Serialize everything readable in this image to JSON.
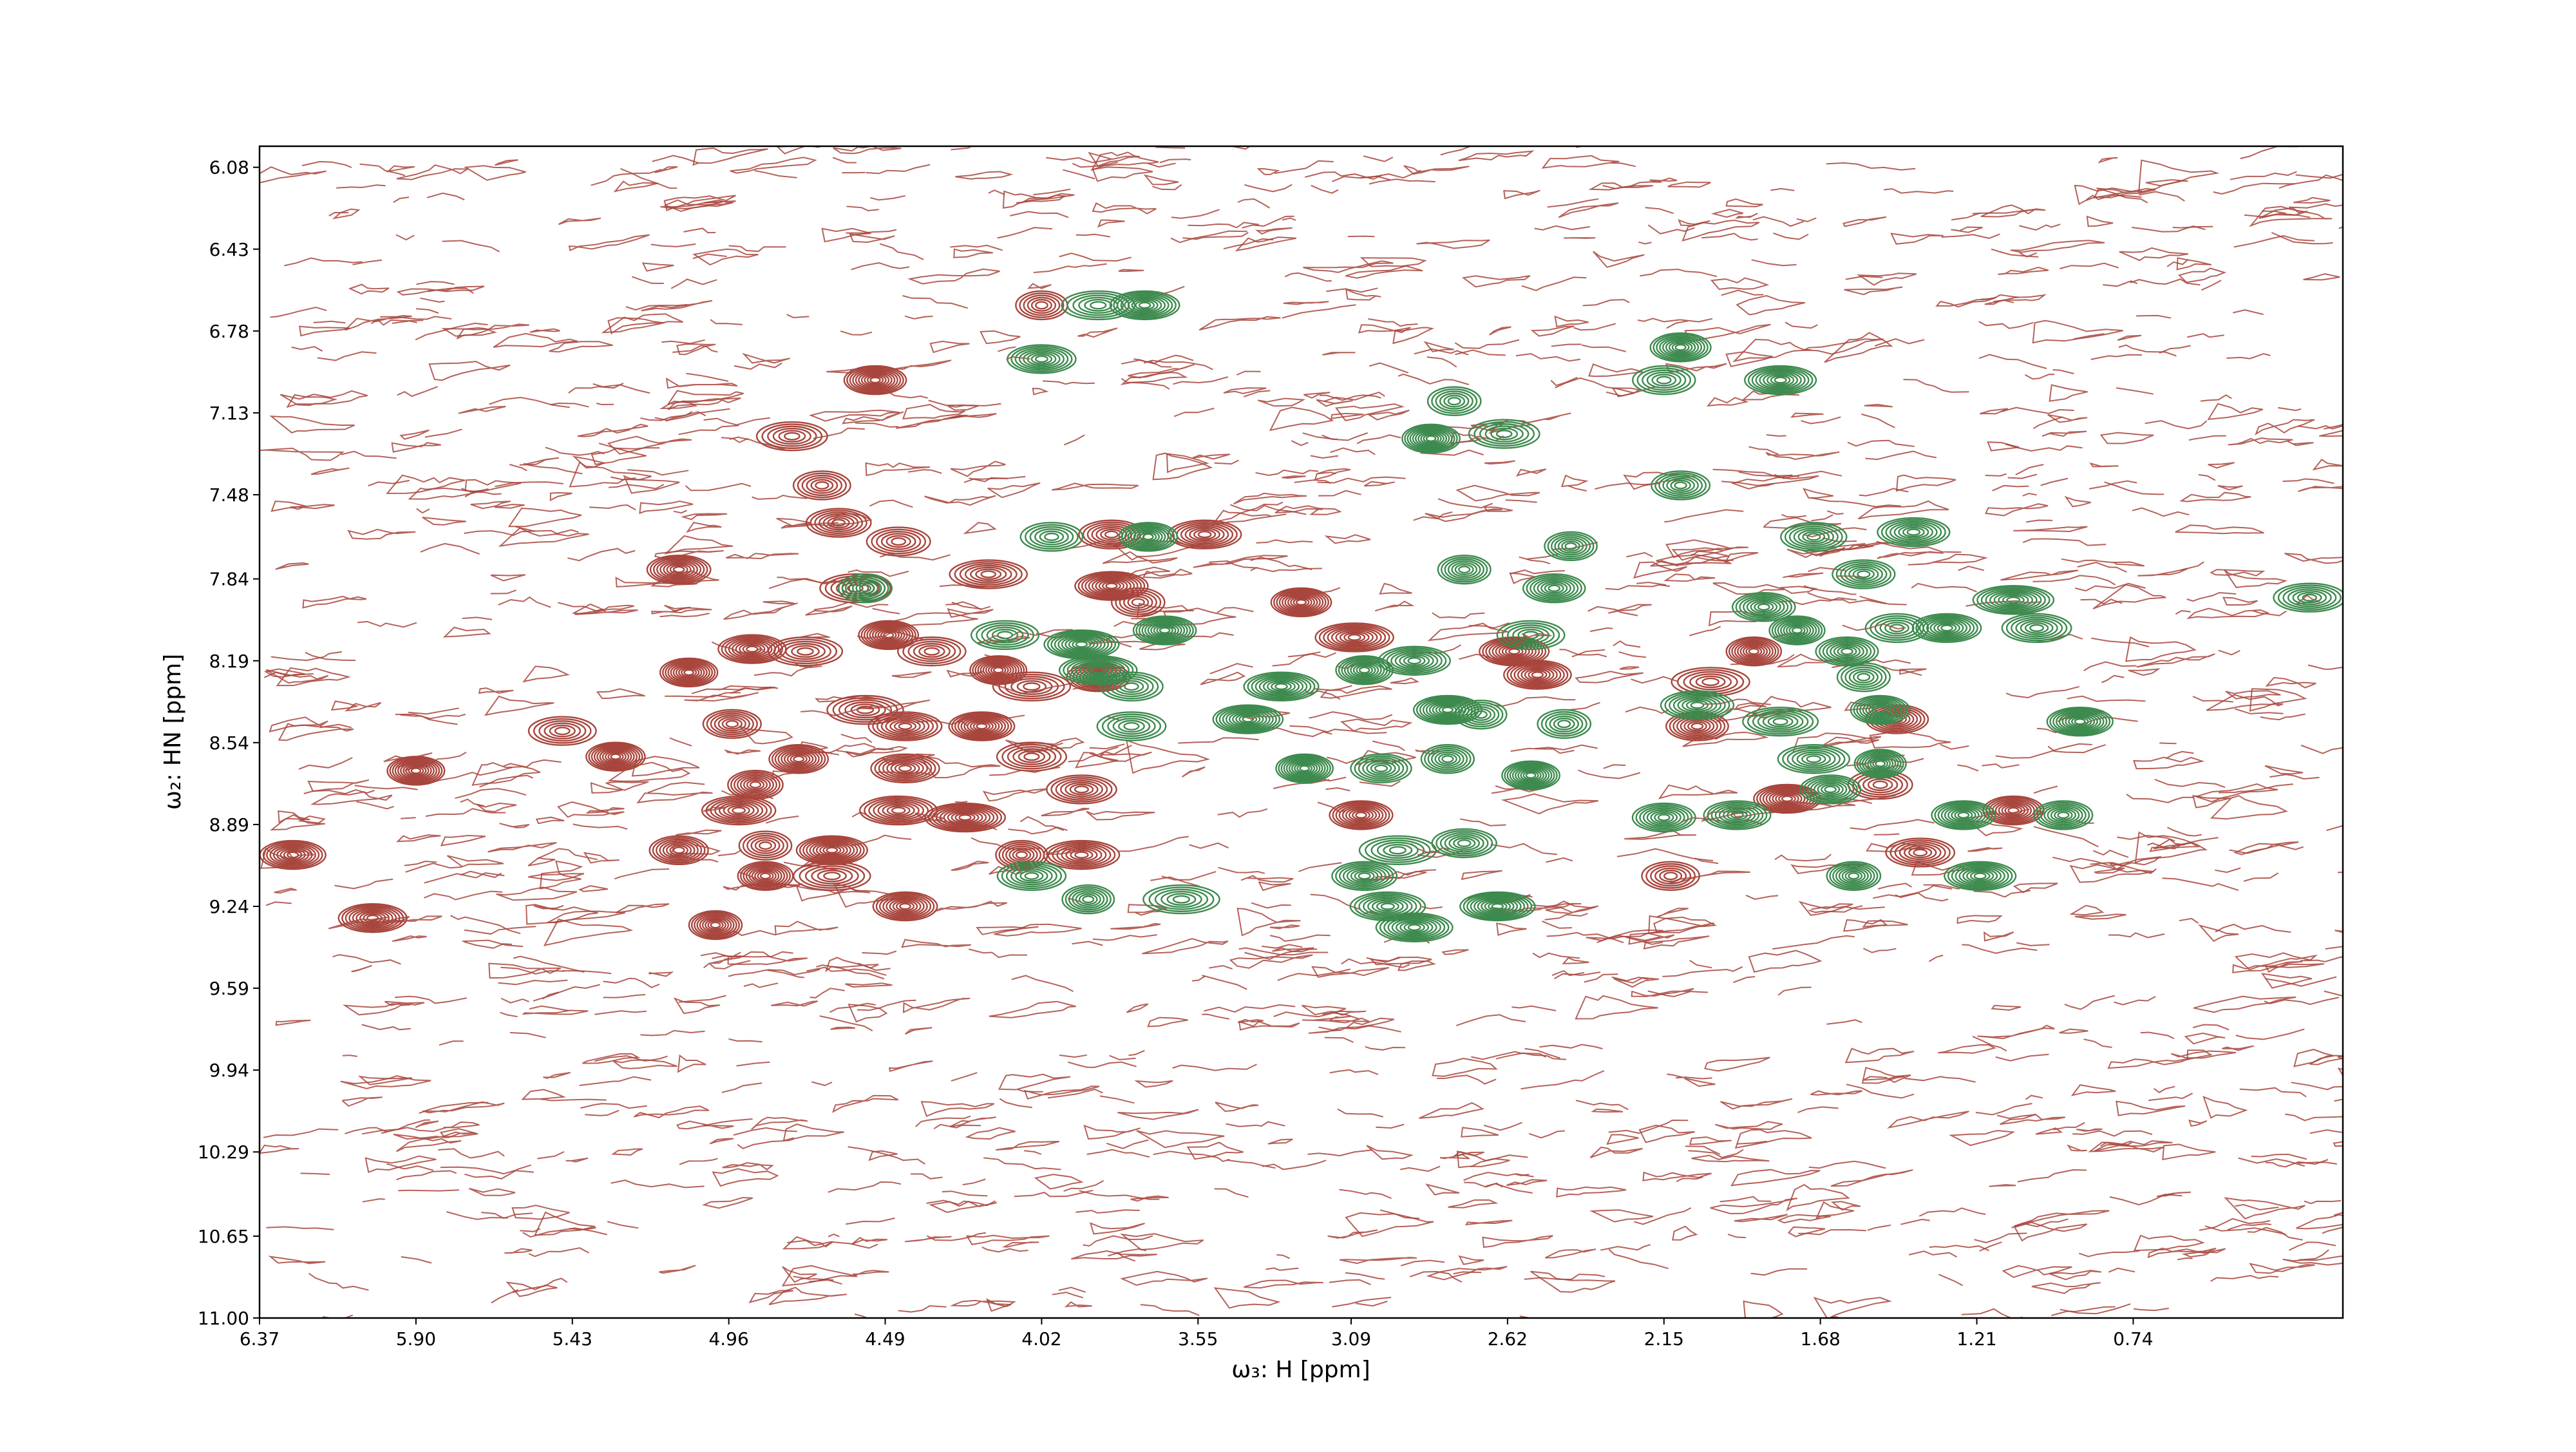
{
  "chart_data": {
    "type": "contour",
    "xlabel": "ω₃: H [ppm]",
    "ylabel": "ω₂: HN [ppm]",
    "xlim": [
      6.37,
      0.11
    ],
    "ylim": [
      11.0,
      5.99
    ],
    "xticks": [
      6.37,
      {
        "value": 5.9,
        "label": "5.90"
      },
      5.43,
      4.96,
      4.49,
      4.02,
      3.55,
      3.09,
      2.62,
      2.15,
      1.68,
      1.21,
      0.74
    ],
    "yticks": [
      6.08,
      6.43,
      6.78,
      7.13,
      7.48,
      7.84,
      8.19,
      8.54,
      8.89,
      9.24,
      9.59,
      9.94,
      10.29,
      10.65,
      {
        "value": 11,
        "label": "11.00"
      }
    ],
    "series": [
      {
        "color": "#a8453c",
        "x": [
          4.02,
          4.52,
          4.77,
          4.68,
          4.63,
          4.45,
          3.53,
          3.81,
          5.11,
          4.18,
          4.58,
          3.73,
          3.24,
          3.08,
          4.89,
          4.73,
          5.08,
          4.48,
          4.35,
          4.15,
          4.05,
          4.95,
          4.55,
          4.43,
          4.2,
          3.85,
          5.46,
          5.3,
          5.9,
          4.75,
          4.43,
          4.05,
          3.9,
          4.93,
          4.88,
          4.45,
          4.25,
          5.11,
          4.85,
          4.65,
          4.85,
          4.65,
          4.08,
          3.9,
          4.43,
          5.0,
          6.03,
          6.27,
          3.06,
          2.53,
          2.01,
          2.05,
          1.88,
          1.78,
          1.5,
          1.45,
          1.38,
          2.13,
          1.1,
          2.6,
          3.81
        ],
        "y": [
          6.67,
          6.99,
          7.23,
          7.44,
          7.6,
          7.68,
          7.65,
          7.65,
          7.8,
          7.82,
          7.88,
          7.94,
          7.94,
          8.09,
          8.14,
          8.15,
          8.24,
          8.08,
          8.15,
          8.23,
          8.3,
          8.46,
          8.4,
          8.47,
          8.47,
          8.26,
          8.49,
          8.6,
          8.66,
          8.61,
          8.65,
          8.6,
          8.74,
          8.83,
          8.72,
          8.83,
          8.86,
          9.0,
          8.98,
          9.0,
          9.11,
          9.11,
          9.02,
          9.02,
          9.24,
          9.32,
          9.29,
          9.02,
          8.85,
          8.25,
          8.28,
          8.47,
          8.15,
          8.78,
          8.72,
          8.44,
          9.01,
          9.11,
          8.83,
          8.15,
          7.87
        ]
      },
      {
        "color": "#3d8a4e",
        "x": [
          3.85,
          3.71,
          4.02,
          3.99,
          3.7,
          3.65,
          3.9,
          3.85,
          3.75,
          3.75,
          3.4,
          3.3,
          3.05,
          2.9,
          2.8,
          2.7,
          2.45,
          2.85,
          2.63,
          2.78,
          2.1,
          2.43,
          2.48,
          2.75,
          2.55,
          1.7,
          1.4,
          1.55,
          2.15,
          2.1,
          1.8,
          1.85,
          1.75,
          1.6,
          1.55,
          2.05,
          1.8,
          1.5,
          1.45,
          1.3,
          1.1,
          1.03,
          0.9,
          0.21,
          3.23,
          3.0,
          2.8,
          2.55,
          2.15,
          1.93,
          1.7,
          1.65,
          1.5,
          1.25,
          0.95,
          1.2,
          1.58,
          2.95,
          2.75,
          2.98,
          2.9,
          2.65,
          3.6,
          3.88,
          4.05,
          4.13,
          4.55,
          3.05
        ],
        "y": [
          6.67,
          6.67,
          6.9,
          7.66,
          7.66,
          8.06,
          8.12,
          8.23,
          8.3,
          8.47,
          8.44,
          8.3,
          8.23,
          8.19,
          8.4,
          8.42,
          8.46,
          7.24,
          7.22,
          7.08,
          7.44,
          7.7,
          7.88,
          7.8,
          8.08,
          7.66,
          7.64,
          7.82,
          6.99,
          6.85,
          6.99,
          7.96,
          8.06,
          8.15,
          8.26,
          8.38,
          8.45,
          8.4,
          8.05,
          8.05,
          7.93,
          8.05,
          8.45,
          7.92,
          8.65,
          8.65,
          8.61,
          8.68,
          8.86,
          8.85,
          8.61,
          8.74,
          8.63,
          8.85,
          8.85,
          9.11,
          9.11,
          9.0,
          8.97,
          9.24,
          9.33,
          9.24,
          9.21,
          9.21,
          9.11,
          8.08,
          7.88,
          9.11
        ]
      }
    ]
  }
}
